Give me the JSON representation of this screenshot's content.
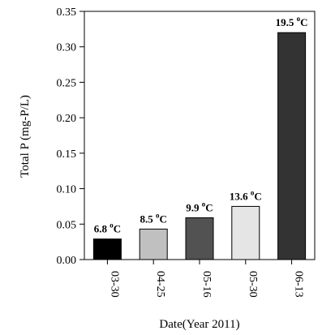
{
  "chart_data": {
    "type": "bar",
    "title": "",
    "xlabel": "Date(Year 2011)",
    "ylabel": "Total P (mg-P/L)",
    "ylim": [
      0,
      0.35
    ],
    "yticks": [
      "0.00",
      "0.05",
      "0.10",
      "0.15",
      "0.20",
      "0.25",
      "0.30",
      "0.35"
    ],
    "categories": [
      "03-30",
      "04-25",
      "05-16",
      "05-30",
      "06-13"
    ],
    "values": [
      0.029,
      0.043,
      0.059,
      0.075,
      0.32
    ],
    "bar_colors": [
      "#000000",
      "#c0c0c0",
      "#525252",
      "#e5e5e5",
      "#333333"
    ],
    "annotations": [
      {
        "value": "6.8",
        "deg": "o",
        "unit": "C"
      },
      {
        "value": "8.5",
        "deg": "o",
        "unit": "C"
      },
      {
        "value": "9.9",
        "deg": "o",
        "unit": "C"
      },
      {
        "value": "13.6",
        "deg": "o",
        "unit": "C"
      },
      {
        "value": "19.5",
        "deg": "o",
        "unit": "C"
      }
    ],
    "grid": false
  }
}
